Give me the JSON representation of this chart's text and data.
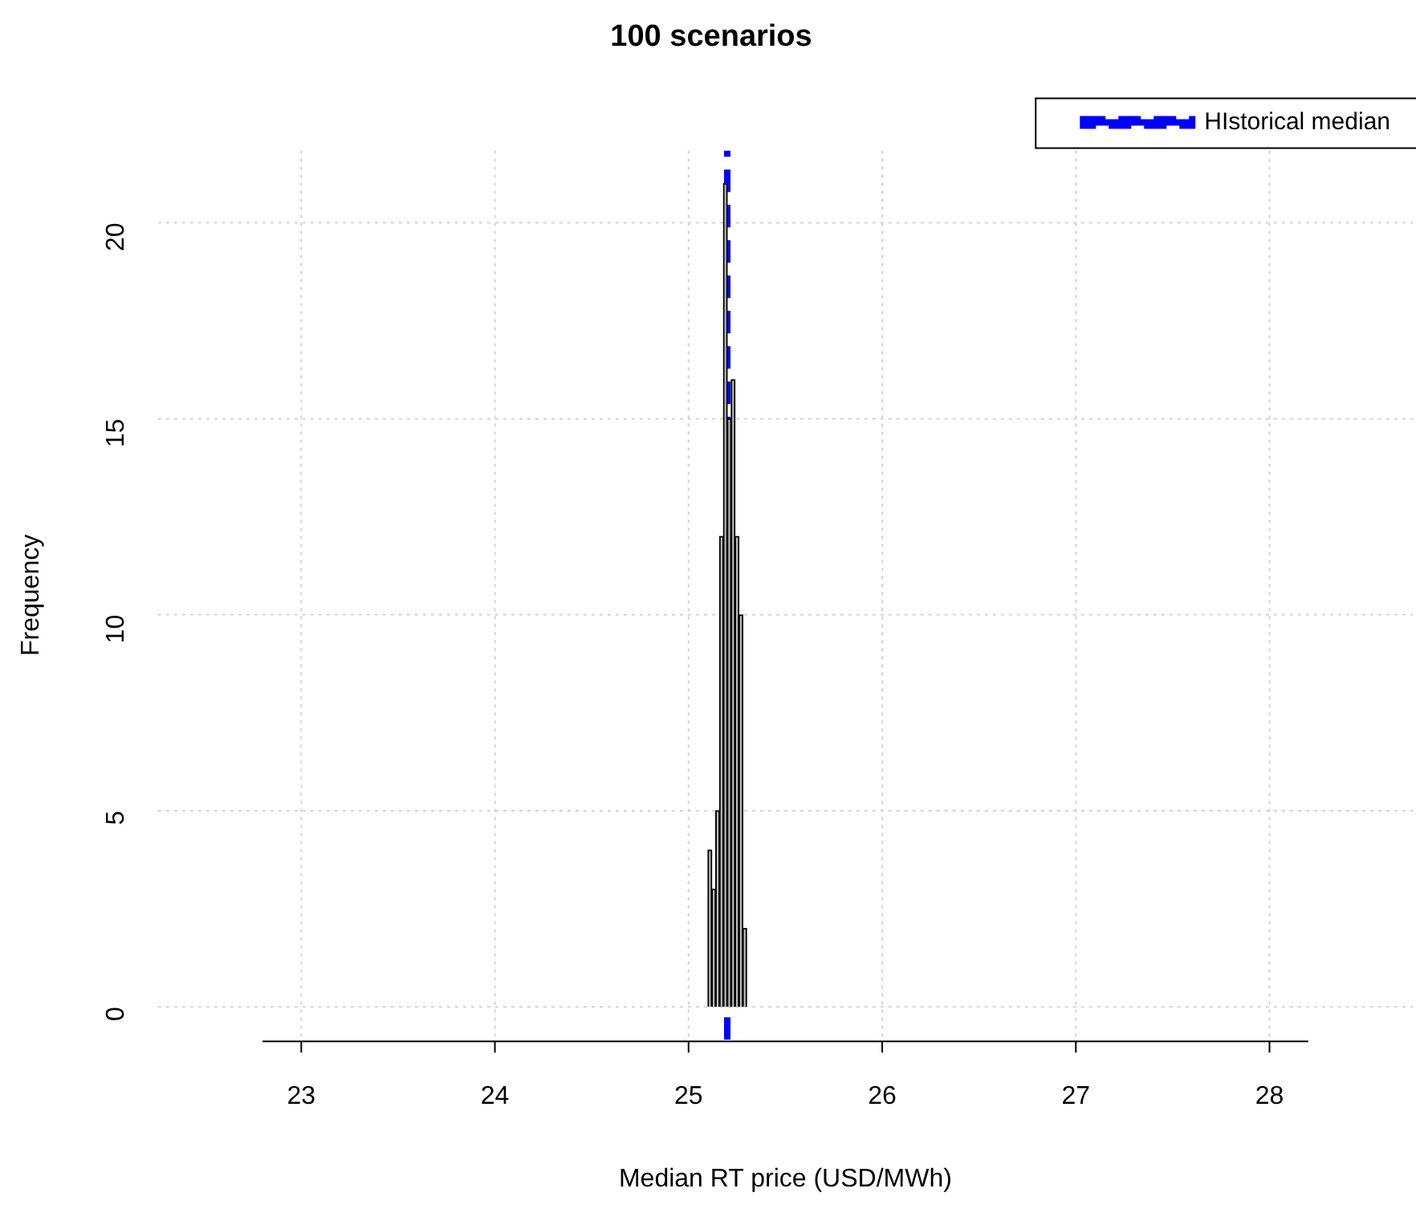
{
  "chart_data": {
    "type": "histogram",
    "title": "100 scenarios",
    "xlabel": "Median RT price (USD/MWh)",
    "ylabel": "Frequency",
    "bins": [
      25.1,
      25.12,
      25.14,
      25.16,
      25.18,
      25.2,
      25.22,
      25.24,
      25.26,
      25.28,
      25.3
    ],
    "values": [
      4,
      3,
      5,
      12,
      21,
      15,
      16,
      12,
      10,
      2
    ],
    "color": "#bebebe",
    "xlim": [
      22.8,
      28.2
    ],
    "xticks": [
      23,
      24,
      25,
      26,
      27,
      28
    ],
    "ylim": [
      -0.84,
      21.84
    ],
    "yticks": [
      0,
      5,
      10,
      15,
      20
    ],
    "grid": true,
    "legend": "top right",
    "ref_lines": [
      {
        "axis": "x",
        "value": 25.2,
        "label": "HIstorical median",
        "color": "#0000ff",
        "line_style": "dashed"
      }
    ]
  }
}
